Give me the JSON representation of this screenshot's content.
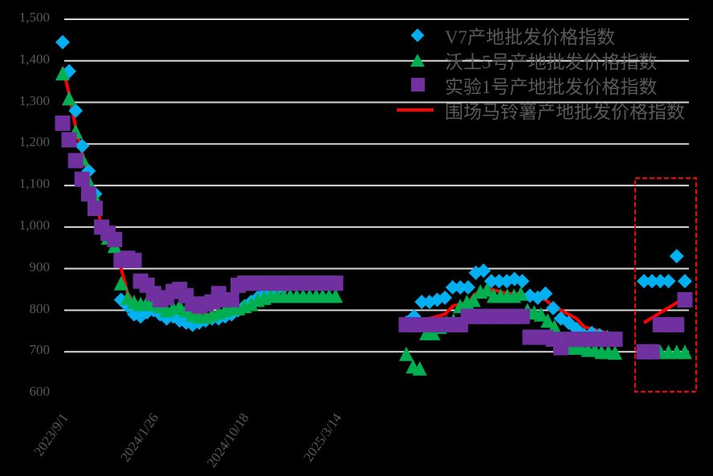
{
  "chart_data": {
    "type": "scatter",
    "title": "",
    "xlabel": "",
    "ylabel": "",
    "ylim": [
      600,
      1500
    ],
    "yticks": [
      "1,500",
      "1,400",
      "1,300",
      "1,200",
      "1,100",
      "1,000",
      "900",
      "800",
      "700",
      "600"
    ],
    "xticks": [
      "2023/9/1",
      "2024/1/26",
      "2024/10/18",
      "2025/3/14"
    ],
    "grid": "horizontal",
    "legend_position": "top-right",
    "highlight_box": {
      "style": "dashed",
      "color": "#FF0000",
      "note": "latest period highlighted"
    },
    "series": [
      {
        "name": "V7产地批发价格指数",
        "marker": "diamond",
        "color": "#00B0F0",
        "segments": [
          [
            1445,
            1375,
            1280,
            1195,
            1135,
            1080,
            1000,
            980,
            960,
            825,
            810,
            790,
            785,
            795,
            800,
            790,
            780,
            785,
            775,
            770,
            765,
            770,
            775,
            780,
            780,
            785,
            790,
            800,
            810,
            820,
            830,
            840,
            845,
            850,
            855,
            860,
            860,
            860,
            860,
            860,
            860,
            860,
            860
          ],
          [
            770,
            785,
            820,
            820,
            825,
            830,
            855,
            855,
            855,
            890,
            895,
            870,
            870,
            870,
            875,
            870,
            835,
            830,
            840,
            805,
            780,
            770,
            755,
            740,
            745,
            740,
            735,
            730
          ],
          [
            870,
            870,
            870,
            870,
            930,
            870
          ]
        ]
      },
      {
        "name": "沃土5号产地批发价格指数",
        "marker": "triangle",
        "color": "#00B050",
        "segments": [
          [
            1370,
            1310,
            1230,
            1165,
            1110,
            1070,
            1000,
            975,
            955,
            865,
            830,
            820,
            815,
            820,
            815,
            810,
            800,
            805,
            810,
            800,
            790,
            785,
            785,
            790,
            795,
            800,
            805,
            805,
            810,
            815,
            825,
            830,
            835,
            835,
            835,
            835,
            835,
            835,
            835,
            835,
            835,
            835,
            835
          ],
          [
            695,
            665,
            660,
            745,
            745,
            760,
            770,
            775,
            810,
            820,
            825,
            845,
            850,
            835,
            835,
            835,
            835,
            840,
            800,
            795,
            790,
            775,
            760,
            730,
            715,
            710,
            710,
            705,
            705,
            700,
            700,
            698
          ],
          [
            700,
            700,
            700,
            700,
            700,
            700
          ]
        ]
      },
      {
        "name": "实验1号产地批发价格指数",
        "marker": "square",
        "color": "#7030A0",
        "segments": [
          [
            1250,
            1210,
            1160,
            1115,
            1080,
            1045,
            1000,
            985,
            970,
            920,
            925,
            920,
            870,
            860,
            840,
            825,
            830,
            845,
            850,
            835,
            815,
            810,
            815,
            820,
            840,
            825,
            825,
            860,
            865,
            865,
            865,
            865,
            865,
            865,
            865,
            865,
            865,
            865,
            865,
            865,
            865,
            865,
            865
          ],
          [
            765,
            765,
            765,
            765,
            765,
            765,
            765,
            765,
            785,
            785,
            785,
            785,
            785,
            785,
            785,
            785,
            735,
            735,
            735,
            730,
            710,
            730,
            730,
            730,
            730,
            730,
            730,
            730
          ],
          [
            700,
            700,
            765,
            765,
            765,
            825
          ]
        ]
      },
      {
        "name": "围场马铃薯产地批发价格指数",
        "marker": "line",
        "color": "#FF0000",
        "segments": [
          [
            1385,
            1320,
            1240,
            1180,
            1120,
            1070,
            1000,
            980,
            960,
            900,
            840,
            820,
            810,
            805,
            800,
            800,
            795,
            800,
            805,
            800,
            795,
            790,
            790,
            790,
            795,
            800,
            805,
            810,
            815,
            820,
            830,
            840,
            850,
            855,
            860,
            860,
            860,
            860,
            860,
            860,
            860,
            860,
            860
          ],
          [
            760,
            760,
            770,
            780,
            785,
            790,
            810,
            815,
            820,
            840,
            845,
            850,
            845,
            840,
            840,
            840,
            835,
            830,
            825,
            810,
            800,
            790,
            780,
            760,
            755,
            750,
            745,
            740
          ],
          [
            770,
            790,
            810,
            830
          ]
        ]
      }
    ]
  },
  "legend": {
    "items": [
      {
        "label": "V7产地批发价格指数"
      },
      {
        "label": "沃土5号产地批发价格指数"
      },
      {
        "label": "实验1号产地批发价格指数"
      },
      {
        "label": "围场马铃薯产地批发价格指数"
      }
    ]
  },
  "axes": {
    "y_labels": [
      "1,500",
      "1,400",
      "1,300",
      "1,200",
      "1,100",
      "1,000",
      "900",
      "800",
      "700",
      "600"
    ],
    "x_labels": [
      "2023/9/1",
      "2024/1/26",
      "2024/10/18",
      "2025/3/14"
    ]
  }
}
